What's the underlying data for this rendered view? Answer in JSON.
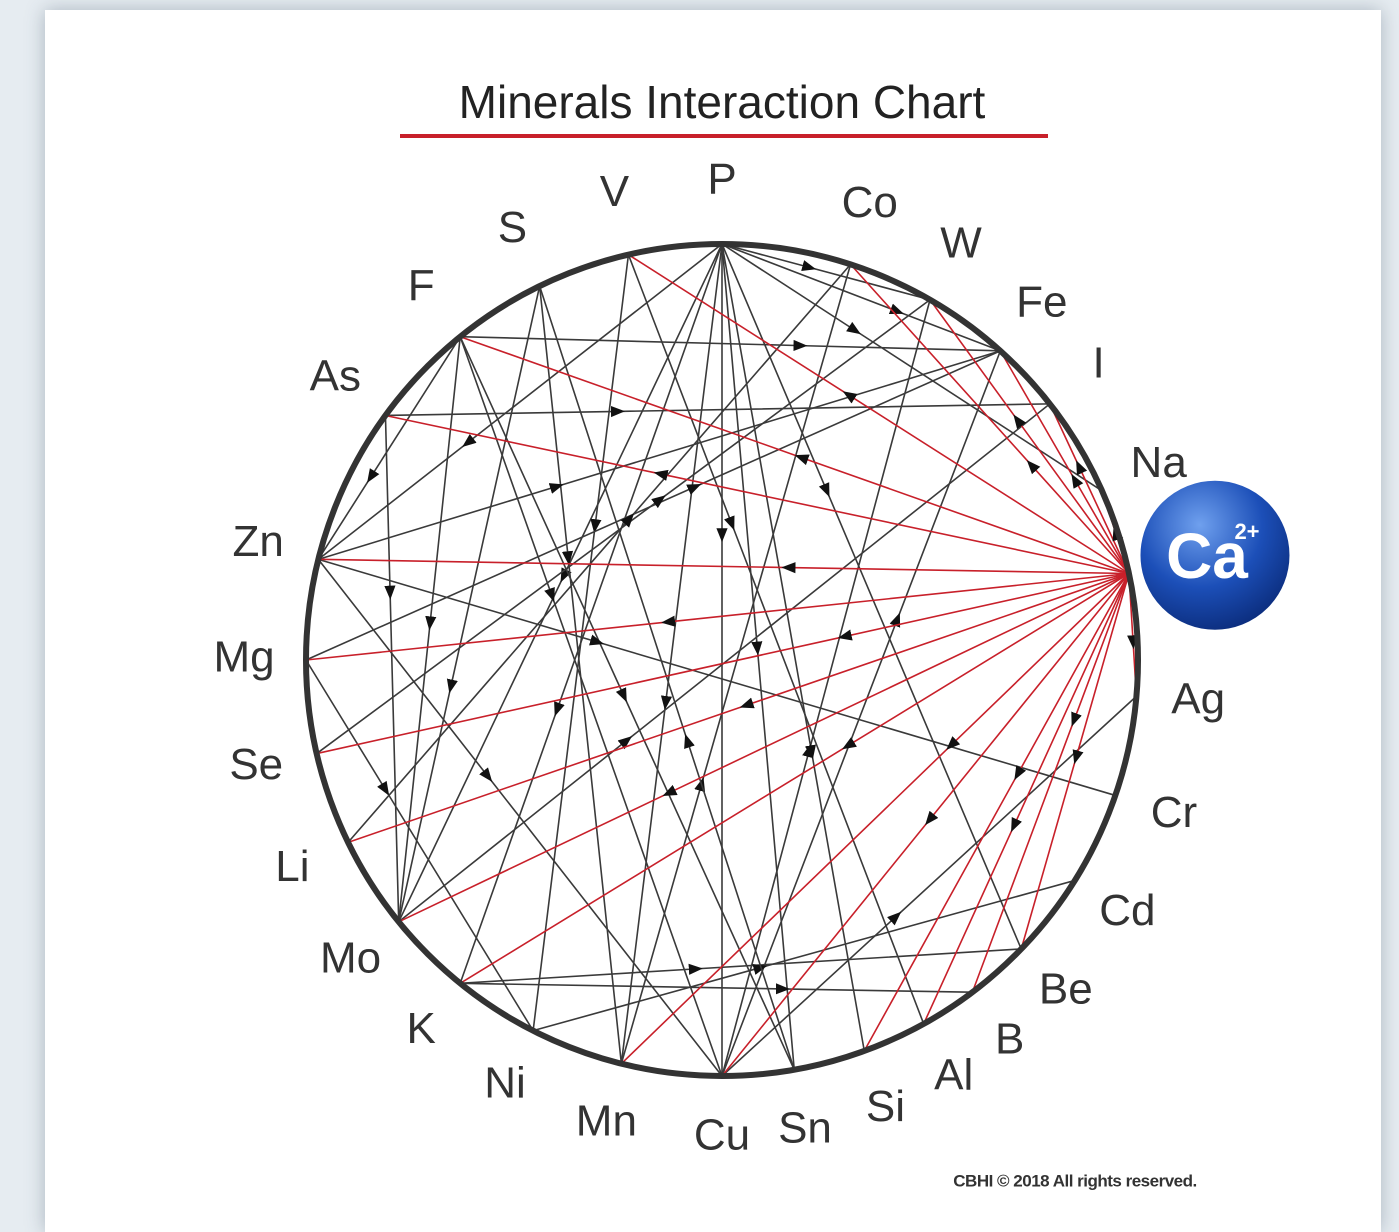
{
  "title": "Minerals Interaction Chart",
  "footer": "CBHI © 2018 All rights reserved.",
  "nodes": [
    {
      "label": "P"
    },
    {
      "label": "Co"
    },
    {
      "label": "W"
    },
    {
      "label": "Fe"
    },
    {
      "label": "I"
    },
    {
      "label": "Na"
    },
    {
      "label": "Ca",
      "charge": "2+"
    },
    {
      "label": "Ag"
    },
    {
      "label": "Cr"
    },
    {
      "label": "Cd"
    },
    {
      "label": "Be"
    },
    {
      "label": "B"
    },
    {
      "label": "Al"
    },
    {
      "label": "Si"
    },
    {
      "label": "Sn"
    },
    {
      "label": "Cu"
    },
    {
      "label": "Mn"
    },
    {
      "label": "Ni"
    },
    {
      "label": "K"
    },
    {
      "label": "Mo"
    },
    {
      "label": "Li"
    },
    {
      "label": "Se"
    },
    {
      "label": "Mg"
    },
    {
      "label": "Zn"
    },
    {
      "label": "As"
    },
    {
      "label": "F"
    },
    {
      "label": "S"
    },
    {
      "label": "V"
    }
  ],
  "edge_groups": [
    {
      "color": "#3a3a3a",
      "pairs": [
        [
          0,
          15
        ],
        [
          0,
          16
        ],
        [
          0,
          19
        ],
        [
          0,
          18
        ],
        [
          0,
          23
        ],
        [
          0,
          14
        ],
        [
          0,
          13
        ],
        [
          0,
          10
        ],
        [
          0,
          3
        ],
        [
          0,
          2
        ],
        [
          0,
          5
        ],
        [
          24,
          4
        ],
        [
          24,
          19
        ],
        [
          25,
          19
        ],
        [
          25,
          23
        ],
        [
          25,
          15
        ],
        [
          25,
          14
        ],
        [
          25,
          3
        ],
        [
          26,
          19
        ],
        [
          26,
          16
        ],
        [
          27,
          17
        ],
        [
          27,
          12
        ],
        [
          23,
          8
        ],
        [
          23,
          3
        ],
        [
          23,
          15
        ],
        [
          22,
          3
        ],
        [
          22,
          17
        ],
        [
          18,
          10
        ],
        [
          15,
          3
        ],
        [
          15,
          2
        ],
        [
          15,
          7
        ],
        [
          16,
          1
        ],
        [
          17,
          9
        ],
        [
          21,
          2
        ],
        [
          20,
          1
        ],
        [
          19,
          4
        ],
        [
          18,
          11
        ],
        [
          14,
          26
        ]
      ]
    },
    {
      "color": "#c8202a",
      "pairs": [
        [
          6,
          27
        ],
        [
          6,
          24
        ],
        [
          6,
          25
        ],
        [
          6,
          23
        ],
        [
          6,
          22
        ],
        [
          6,
          21
        ],
        [
          6,
          20
        ],
        [
          6,
          19
        ],
        [
          6,
          18
        ],
        [
          6,
          16
        ],
        [
          6,
          15
        ],
        [
          6,
          13
        ],
        [
          6,
          12
        ],
        [
          6,
          11
        ],
        [
          6,
          10
        ],
        [
          6,
          7
        ],
        [
          6,
          1
        ],
        [
          6,
          2
        ],
        [
          6,
          3
        ],
        [
          6,
          4
        ],
        [
          6,
          5
        ]
      ]
    }
  ]
}
